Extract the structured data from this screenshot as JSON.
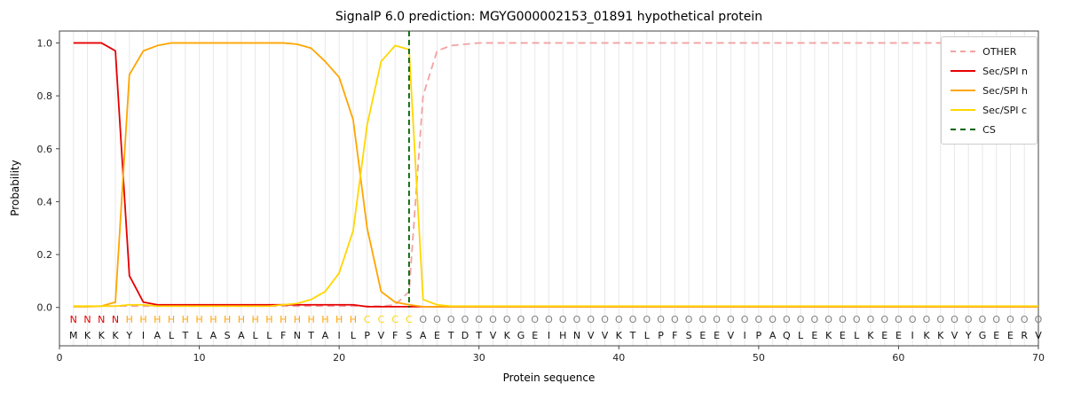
{
  "chart_data": {
    "type": "line",
    "title": "SignalP 6.0 prediction: MGYG000002153_01891 hypothetical protein",
    "xlabel": "Protein sequence",
    "ylabel": "Probability",
    "xlim": [
      0,
      70
    ],
    "ylim": [
      -0.145,
      1.045
    ],
    "xticks": [
      0,
      10,
      20,
      30,
      40,
      50,
      60,
      70
    ],
    "yticks": [
      0.0,
      0.2,
      0.4,
      0.6,
      0.8,
      1.0
    ],
    "grid": "vertical-per-residue",
    "legend_position": "upper right",
    "x_start": 1,
    "sequence": "MKKKYIALTLASALLFNTAILPVFSAETDTVKGEIHNVVKTLPFSEEVIPAQLEKELKEEIKKVYGEERV",
    "region_labels": "NNNNHHHHHHHHHHHHHHHHHCCCCOOOOOOOOOOOOOOOOOOOOOOOOOOOOOOOOOOOOOOOOOOOOO",
    "region_colors": {
      "N": "#e60000",
      "H": "#ffa500",
      "C": "#ffd700",
      "O": "#808080"
    },
    "series": [
      {
        "name": "OTHER",
        "color": "#f2a2a2",
        "style": "dashed",
        "values": [
          0.005,
          0.005,
          0.005,
          0.005,
          0.005,
          0.005,
          0.005,
          0.005,
          0.005,
          0.005,
          0.005,
          0.005,
          0.005,
          0.005,
          0.005,
          0.005,
          0.005,
          0.005,
          0.005,
          0.005,
          0.005,
          0.005,
          0.005,
          0.01,
          0.06,
          0.8,
          0.97,
          0.99,
          0.995,
          1.0,
          1.0,
          1.0,
          1.0,
          1.0,
          1.0,
          1.0,
          1.0,
          1.0,
          1.0,
          1.0,
          1.0,
          1.0,
          1.0,
          1.0,
          1.0,
          1.0,
          1.0,
          1.0,
          1.0,
          1.0,
          1.0,
          1.0,
          1.0,
          1.0,
          1.0,
          1.0,
          1.0,
          1.0,
          1.0,
          1.0,
          1.0,
          1.0,
          1.0,
          1.0,
          1.0,
          1.0,
          1.0,
          1.0,
          1.0,
          1.0
        ]
      },
      {
        "name": "Sec/SPI n",
        "color": "#e60000",
        "style": "solid",
        "values": [
          1.0,
          1.0,
          1.0,
          0.97,
          0.12,
          0.02,
          0.01,
          0.01,
          0.01,
          0.01,
          0.01,
          0.01,
          0.01,
          0.01,
          0.01,
          0.01,
          0.01,
          0.01,
          0.01,
          0.01,
          0.01,
          0.003,
          0.003,
          0.003,
          0.003,
          0.003,
          0.003,
          0.003,
          0.003,
          0.003,
          0.003,
          0.003,
          0.003,
          0.003,
          0.003,
          0.003,
          0.003,
          0.003,
          0.003,
          0.003,
          0.003,
          0.003,
          0.003,
          0.003,
          0.003,
          0.003,
          0.003,
          0.003,
          0.003,
          0.003,
          0.003,
          0.003,
          0.003,
          0.003,
          0.003,
          0.003,
          0.003,
          0.003,
          0.003,
          0.003,
          0.003,
          0.003,
          0.003,
          0.003,
          0.003,
          0.003,
          0.003,
          0.003,
          0.003,
          0.003
        ]
      },
      {
        "name": "Sec/SPI h",
        "color": "#ffa500",
        "style": "solid",
        "values": [
          0.003,
          0.003,
          0.005,
          0.02,
          0.88,
          0.97,
          0.99,
          1.0,
          1.0,
          1.0,
          1.0,
          1.0,
          1.0,
          1.0,
          1.0,
          1.0,
          0.995,
          0.98,
          0.93,
          0.87,
          0.71,
          0.3,
          0.06,
          0.02,
          0.01,
          0.003,
          0.003,
          0.003,
          0.003,
          0.003,
          0.003,
          0.003,
          0.003,
          0.003,
          0.003,
          0.003,
          0.003,
          0.003,
          0.003,
          0.003,
          0.003,
          0.003,
          0.003,
          0.003,
          0.003,
          0.003,
          0.003,
          0.003,
          0.003,
          0.003,
          0.003,
          0.003,
          0.003,
          0.003,
          0.003,
          0.003,
          0.003,
          0.003,
          0.003,
          0.003,
          0.003,
          0.003,
          0.003,
          0.003,
          0.003,
          0.003,
          0.003,
          0.003,
          0.003,
          0.003
        ]
      },
      {
        "name": "Sec/SPI c",
        "color": "#ffd700",
        "style": "solid",
        "values": [
          0.005,
          0.005,
          0.005,
          0.005,
          0.01,
          0.01,
          0.005,
          0.005,
          0.005,
          0.005,
          0.005,
          0.005,
          0.005,
          0.005,
          0.005,
          0.01,
          0.015,
          0.03,
          0.06,
          0.13,
          0.29,
          0.69,
          0.93,
          0.99,
          0.975,
          0.03,
          0.01,
          0.005,
          0.005,
          0.005,
          0.005,
          0.005,
          0.005,
          0.005,
          0.005,
          0.005,
          0.005,
          0.005,
          0.005,
          0.005,
          0.005,
          0.005,
          0.005,
          0.005,
          0.005,
          0.005,
          0.005,
          0.005,
          0.005,
          0.005,
          0.005,
          0.005,
          0.005,
          0.005,
          0.005,
          0.005,
          0.005,
          0.005,
          0.005,
          0.005,
          0.005,
          0.005,
          0.005,
          0.005,
          0.005,
          0.005,
          0.005,
          0.005,
          0.005,
          0.005
        ]
      }
    ],
    "vline": {
      "name": "CS",
      "x": 25,
      "color": "#006400",
      "style": "dashed"
    }
  }
}
